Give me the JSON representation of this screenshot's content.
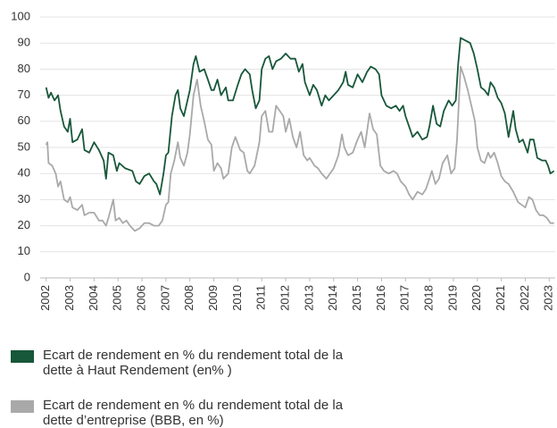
{
  "chart_data": {
    "type": "line",
    "xlim": [
      2001.75,
      2023.25
    ],
    "xticks": [
      2002,
      2003,
      2004,
      2005,
      2006,
      2007,
      2008,
      2009,
      2010,
      2011,
      2012,
      2013,
      2014,
      2015,
      2016,
      2017,
      2018,
      2019,
      2020,
      2021,
      2022,
      2023
    ],
    "ylim": [
      0,
      100
    ],
    "yticks": [
      0,
      10,
      20,
      30,
      40,
      50,
      60,
      70,
      80,
      90,
      100
    ],
    "grid": true,
    "series": [
      {
        "name": "Ecart de rendement en % du rendement total de la dette à Haut Rendement (en% )",
        "color": "#17573a",
        "x": [
          2002.0,
          2002.1,
          2002.2,
          2002.35,
          2002.5,
          2002.6,
          2002.75,
          2002.9,
          2003.0,
          2003.1,
          2003.3,
          2003.5,
          2003.6,
          2003.8,
          2004.0,
          2004.2,
          2004.4,
          2004.5,
          2004.6,
          2004.8,
          2004.95,
          2005.05,
          2005.3,
          2005.6,
          2005.75,
          2005.9,
          2006.1,
          2006.3,
          2006.5,
          2006.6,
          2006.75,
          2006.9,
          2007.0,
          2007.1,
          2007.25,
          2007.4,
          2007.5,
          2007.6,
          2007.75,
          2008.0,
          2008.15,
          2008.25,
          2008.4,
          2008.6,
          2008.75,
          2008.9,
          2009.0,
          2009.15,
          2009.3,
          2009.5,
          2009.6,
          2009.8,
          2010.0,
          2010.15,
          2010.3,
          2010.5,
          2010.6,
          2010.75,
          2010.9,
          2011.0,
          2011.15,
          2011.3,
          2011.45,
          2011.6,
          2011.8,
          2012.0,
          2012.2,
          2012.4,
          2012.55,
          2012.7,
          2012.8,
          2013.0,
          2013.15,
          2013.3,
          2013.5,
          2013.65,
          2013.8,
          2014.0,
          2014.2,
          2014.4,
          2014.5,
          2014.6,
          2014.8,
          2015.0,
          2015.2,
          2015.4,
          2015.55,
          2015.75,
          2015.9,
          2016.0,
          2016.2,
          2016.4,
          2016.6,
          2016.75,
          2016.9,
          2017.0,
          2017.15,
          2017.3,
          2017.5,
          2017.7,
          2017.9,
          2018.0,
          2018.15,
          2018.3,
          2018.45,
          2018.6,
          2018.8,
          2018.95,
          2019.1,
          2019.2,
          2019.3,
          2019.5,
          2019.7,
          2019.85,
          2020.0,
          2020.15,
          2020.3,
          2020.45,
          2020.55,
          2020.7,
          2020.85,
          2021.0,
          2021.15,
          2021.3,
          2021.5,
          2021.6,
          2021.75,
          2021.9,
          2022.1,
          2022.2,
          2022.35,
          2022.5,
          2022.7,
          2022.85,
          2022.95,
          2023.05,
          2023.2
        ],
        "values": [
          73,
          69,
          71,
          68,
          70,
          64,
          58,
          56,
          61,
          52,
          53,
          57,
          49,
          48,
          52,
          49,
          45,
          38,
          48,
          47,
          41,
          44,
          42,
          41,
          37,
          36,
          39,
          40,
          37,
          36,
          32,
          40,
          47,
          48,
          62,
          70,
          72,
          65,
          62,
          72,
          82,
          85,
          79,
          80,
          76,
          72,
          72,
          76,
          70,
          73,
          68,
          68,
          74,
          78,
          80,
          78,
          72,
          65,
          68,
          80,
          84,
          85,
          80,
          83,
          84,
          86,
          84,
          84,
          79,
          82,
          75,
          70,
          74,
          72,
          66,
          70,
          68,
          70,
          72,
          75,
          79,
          74,
          73,
          78,
          75,
          79,
          81,
          80,
          78,
          70,
          66,
          65,
          66,
          64,
          66,
          62,
          58,
          54,
          56,
          53,
          54,
          58,
          66,
          59,
          58,
          64,
          68,
          66,
          68,
          82,
          92,
          91,
          90,
          86,
          80,
          73,
          72,
          70,
          75,
          73,
          69,
          67,
          63,
          54,
          64,
          57,
          52,
          53,
          48,
          53,
          53,
          46,
          45,
          45,
          43,
          40,
          41
        ]
      },
      {
        "name": "Ecart de rendement en % du rendement total de la dette d’entreprise (BBB, en %)",
        "color": "#a9a9a9",
        "x": [
          2002.0,
          2002.05,
          2002.1,
          2002.25,
          2002.4,
          2002.5,
          2002.6,
          2002.75,
          2002.9,
          2003.0,
          2003.1,
          2003.3,
          2003.5,
          2003.6,
          2003.8,
          2004.0,
          2004.2,
          2004.35,
          2004.5,
          2004.6,
          2004.8,
          2004.9,
          2005.05,
          2005.2,
          2005.35,
          2005.5,
          2005.7,
          2005.9,
          2006.1,
          2006.3,
          2006.5,
          2006.7,
          2006.85,
          2007.0,
          2007.1,
          2007.2,
          2007.35,
          2007.5,
          2007.6,
          2007.75,
          2007.9,
          2008.0,
          2008.15,
          2008.3,
          2008.45,
          2008.6,
          2008.75,
          2008.9,
          2009.0,
          2009.15,
          2009.3,
          2009.4,
          2009.6,
          2009.75,
          2009.9,
          2010.1,
          2010.25,
          2010.4,
          2010.5,
          2010.7,
          2010.9,
          2011.0,
          2011.15,
          2011.3,
          2011.45,
          2011.6,
          2011.75,
          2011.9,
          2012.0,
          2012.15,
          2012.3,
          2012.45,
          2012.6,
          2012.75,
          2012.9,
          2013.0,
          2013.2,
          2013.35,
          2013.5,
          2013.7,
          2013.85,
          2014.0,
          2014.2,
          2014.35,
          2014.45,
          2014.6,
          2014.8,
          2015.0,
          2015.15,
          2015.3,
          2015.5,
          2015.65,
          2015.8,
          2015.95,
          2016.1,
          2016.3,
          2016.5,
          2016.65,
          2016.8,
          2017.0,
          2017.15,
          2017.3,
          2017.5,
          2017.7,
          2017.85,
          2018.0,
          2018.1,
          2018.25,
          2018.4,
          2018.55,
          2018.75,
          2018.9,
          2019.05,
          2019.15,
          2019.3,
          2019.45,
          2019.6,
          2019.75,
          2019.9,
          2020.0,
          2020.15,
          2020.3,
          2020.45,
          2020.55,
          2020.7,
          2020.85,
          2021.0,
          2021.15,
          2021.3,
          2021.5,
          2021.7,
          2021.85,
          2022.0,
          2022.15,
          2022.3,
          2022.45,
          2022.6,
          2022.75,
          2022.9,
          2023.05,
          2023.2
        ],
        "values": [
          51,
          52,
          44,
          43,
          40,
          35,
          37,
          30,
          29,
          31,
          27,
          26,
          28,
          24,
          25,
          25,
          22,
          22,
          20,
          23,
          30,
          22,
          23,
          21,
          22,
          20,
          18,
          19,
          21,
          21,
          20,
          20,
          22,
          28,
          29,
          40,
          45,
          52,
          46,
          43,
          48,
          55,
          70,
          76,
          66,
          60,
          53,
          51,
          41,
          44,
          42,
          38,
          40,
          50,
          54,
          49,
          48,
          41,
          40,
          43,
          52,
          62,
          64,
          56,
          56,
          66,
          64,
          62,
          56,
          61,
          54,
          50,
          56,
          47,
          45,
          46,
          43,
          42,
          40,
          38,
          40,
          42,
          47,
          55,
          50,
          47,
          48,
          53,
          56,
          50,
          63,
          57,
          55,
          43,
          41,
          40,
          41,
          40,
          37,
          35,
          32,
          30,
          33,
          32,
          34,
          38,
          41,
          36,
          38,
          44,
          47,
          40,
          42,
          53,
          81,
          77,
          72,
          66,
          60,
          50,
          45,
          44,
          48,
          46,
          48,
          44,
          39,
          37,
          36,
          33,
          29,
          28,
          27,
          31,
          30,
          26,
          24,
          24,
          23,
          21,
          21
        ]
      }
    ]
  }
}
